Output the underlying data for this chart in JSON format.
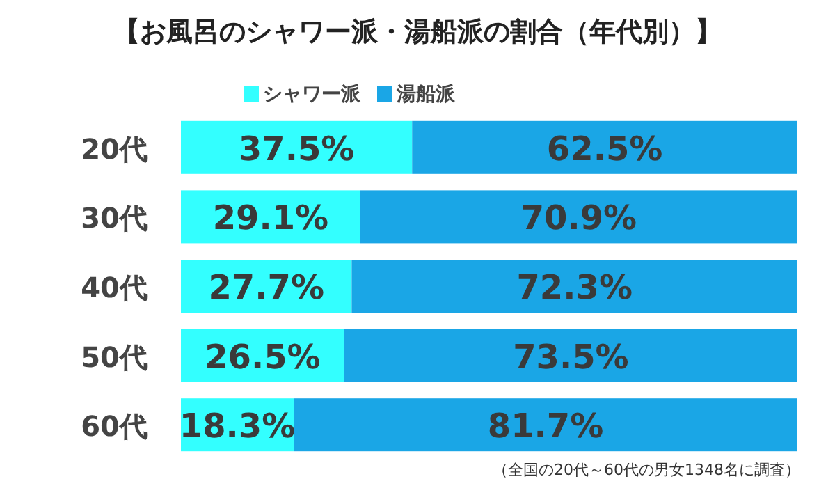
{
  "chart_data": {
    "type": "bar",
    "orientation": "horizontal",
    "stacked": true,
    "title": "【お風呂のシャワー派・湯船派の割合（年代別）】",
    "categories": [
      "20代",
      "30代",
      "40代",
      "50代",
      "60代"
    ],
    "series": [
      {
        "name": "シャワー派",
        "color": "#33ffff",
        "values": [
          37.5,
          29.1,
          27.7,
          26.5,
          18.3
        ],
        "value_labels": [
          "37.5%",
          "29.1%",
          "27.7%",
          "26.5%",
          "18.3%"
        ]
      },
      {
        "name": "湯船派",
        "color": "#1aa6e6",
        "values": [
          62.5,
          70.9,
          72.3,
          73.5,
          81.7
        ],
        "value_labels": [
          "62.5%",
          "70.9%",
          "72.3%",
          "73.5%",
          "81.7%"
        ]
      }
    ],
    "legend": "top",
    "annotations": [
      "（全国の20代～60代の男女1348名に調査）"
    ]
  }
}
